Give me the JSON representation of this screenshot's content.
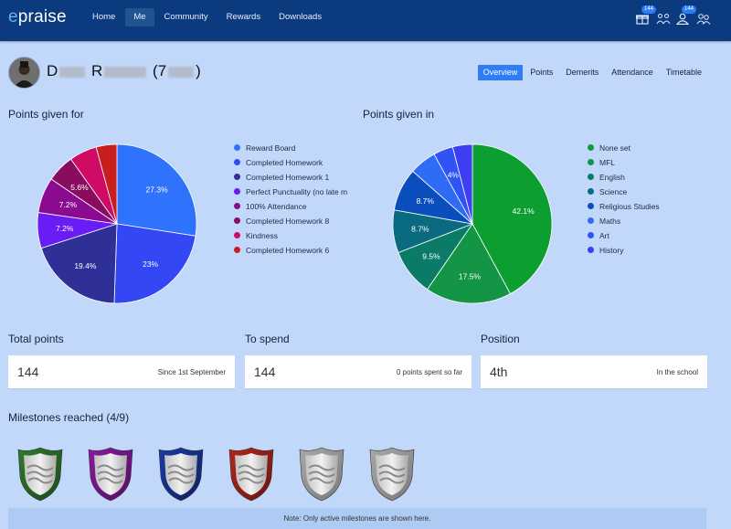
{
  "header": {
    "logo_prefix": "e",
    "logo_rest": "praise",
    "nav": [
      {
        "label": "Home",
        "active": false
      },
      {
        "label": "Me",
        "active": true
      },
      {
        "label": "Community",
        "active": false
      },
      {
        "label": "Rewards",
        "active": false
      },
      {
        "label": "Downloads",
        "active": false
      }
    ],
    "icons": [
      {
        "name": "gift-icon",
        "badge": "144"
      },
      {
        "name": "community-icon",
        "badge": ""
      },
      {
        "name": "user-icon",
        "badge": "144"
      },
      {
        "name": "users-icon",
        "badge": ""
      }
    ]
  },
  "profile": {
    "name_first_initial": "D",
    "name_last_initial": "R",
    "name_open": "(7",
    "name_close": ")"
  },
  "tabs": [
    {
      "label": "Overview",
      "active": true
    },
    {
      "label": "Points",
      "active": false
    },
    {
      "label": "Demerits",
      "active": false
    },
    {
      "label": "Attendance",
      "active": false
    },
    {
      "label": "Timetable",
      "active": false
    }
  ],
  "chart_data": [
    {
      "type": "pie",
      "title": "Points given for",
      "categories": [
        "Reward Board",
        "Completed Homework",
        "Completed Homework 1",
        "Perfect Punctuality (no late m",
        "100% Attendance",
        "Completed Homework 8",
        "Kindness",
        "Completed Homework 6"
      ],
      "values": [
        27.3,
        23,
        19.4,
        7.2,
        7.2,
        5.6,
        5.6,
        4.2
      ],
      "labels": [
        "27.3%",
        "23%",
        "19.4%",
        "7.2%",
        "7.2%",
        "5.6%",
        "",
        ""
      ],
      "colors": [
        "#2f72fc",
        "#3348f4",
        "#2e3097",
        "#6a1cf4",
        "#8a0b8f",
        "#8a0c5e",
        "#cf0b66",
        "#c81e1e"
      ],
      "legend": "right"
    },
    {
      "type": "pie",
      "title": "Points given in",
      "categories": [
        "None set",
        "MFL",
        "English",
        "Science",
        "Religious Studies",
        "Maths",
        "Art",
        "History"
      ],
      "values": [
        42.1,
        17.5,
        9.5,
        8.7,
        8.7,
        5.5,
        4,
        4
      ],
      "labels": [
        "42.1%",
        "17.5%",
        "9.5%",
        "8.7%",
        "8.7%",
        "",
        "4%",
        ""
      ],
      "colors": [
        "#0c9e31",
        "#139545",
        "#0b7b67",
        "#0a6a7f",
        "#0a4ebd",
        "#2f6cf6",
        "#2f53f5",
        "#3d3ef4"
      ],
      "legend": "right"
    }
  ],
  "stats": [
    {
      "title": "Total points",
      "value": "144",
      "sub": "Since 1st September"
    },
    {
      "title": "To spend",
      "value": "144",
      "sub": "0 points spent so far"
    },
    {
      "title": "Position",
      "value": "4th",
      "sub": "In the school"
    }
  ],
  "milestones": {
    "title": "Milestones reached (4/9)",
    "shields": [
      {
        "rim": "#2f7a2c",
        "rim_dark": "#1c4a1a"
      },
      {
        "rim": "#8a1aa0",
        "rim_dark": "#520e60"
      },
      {
        "rim": "#1a3aa8",
        "rim_dark": "#0d1f63"
      },
      {
        "rim": "#b0271e",
        "rim_dark": "#6b140f"
      },
      {
        "rim": "#a8a8a8",
        "rim_dark": "#7a7a7a"
      },
      {
        "rim": "#a8a8a8",
        "rim_dark": "#7a7a7a"
      }
    ],
    "note": "Note: Only active milestones are shown here."
  }
}
